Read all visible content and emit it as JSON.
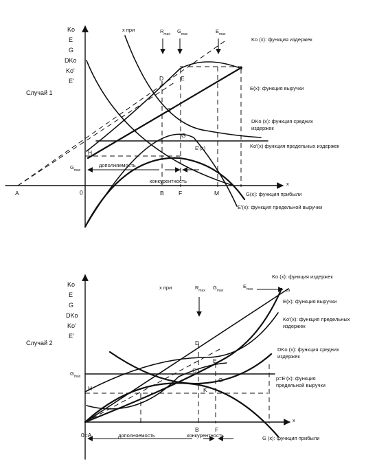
{
  "case1": {
    "title": "Случай 1",
    "y_axis_labels": [
      "Ko",
      "E",
      "G",
      "DKo",
      "Ko'",
      "E'"
    ],
    "x_axis_label": "x",
    "top_labels": {
      "x_pri": "x при",
      "r_max": "R",
      "g_max": "G",
      "e_max": "E",
      "max_sub": "max"
    },
    "point_labels": {
      "A": "A",
      "O": "0",
      "B": "B",
      "F": "F",
      "M": "M",
      "D": "D",
      "E": "E",
      "C": "C",
      "G": "G",
      "H": "H"
    },
    "g_max_label": "G",
    "g_max_sub": "max",
    "curve_labels": {
      "ko": "Ko (x): функция издержек",
      "e": "E(x): функция выручки",
      "dko": "DKo (x): функция средних издержек",
      "e_prime_short": "E'(x)",
      "ko_prime": "Ko'(x)  функция предельных издержек",
      "g": "G(x): функция прибыли",
      "e_prime": "E'(x): функция предельной выручки"
    },
    "region_labels": {
      "complementarity": "дополняемость",
      "concurrency": "конкурентность"
    }
  },
  "case2": {
    "title": "Случай 2",
    "y_axis_labels": [
      "Ko",
      "E",
      "G",
      "DKo",
      "Ko'",
      "E'"
    ],
    "x_axis_label": "x",
    "top_labels": {
      "x_pri": "x при",
      "r_max": "R",
      "g_max": "G",
      "e_max": "E",
      "max_sub": "max",
      "infinity": "∞"
    },
    "point_labels": {
      "O": "0=A",
      "B": "B",
      "F": "F",
      "D": "D",
      "E": "E",
      "C": "C",
      "G": "G",
      "H": "H",
      "K": "K"
    },
    "g_max_label": "G",
    "g_max_sub": "max",
    "curve_labels": {
      "ko": "Ko (x): функция издержек",
      "e": "E(x): функция выручки",
      "ko_prime": "Ko'(x):  функция предельных издержек",
      "dko": "DKo (x): функция средних издержек",
      "p": "p=E'(x): функция предельной выручки",
      "g": "G (x): функция прибыли"
    },
    "region_labels": {
      "complementarity": "дополняемость",
      "concurrency": "конкурентность"
    }
  }
}
